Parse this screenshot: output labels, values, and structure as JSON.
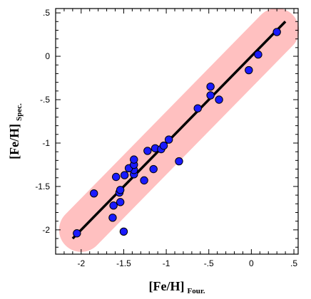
{
  "chart_data": {
    "type": "scatter",
    "xlabel": "[Fe/H]",
    "xlabel_sub": "Four.",
    "ylabel": "[Fe/H]",
    "ylabel_sub": "Spec.",
    "xlim": [
      -2.3,
      0.55
    ],
    "ylim": [
      -2.28,
      0.55
    ],
    "x_ticks": [
      -2,
      -1.5,
      -1,
      -0.5,
      0,
      0.5
    ],
    "x_tick_labels": [
      "-2",
      "-1.5",
      "-1",
      "-.5",
      "0",
      ".5"
    ],
    "y_ticks": [
      -2,
      -1.5,
      -1,
      -0.5,
      0,
      0.5
    ],
    "y_tick_labels": [
      "-2",
      "-1.5",
      "-1",
      "-.5",
      "0",
      ".5"
    ],
    "grid": false,
    "fit_line": {
      "x": [
        -2.1,
        0.4
      ],
      "y": [
        -2.1,
        0.4
      ],
      "color": "#000000"
    },
    "band": {
      "x": [
        -2.0,
        0.3
      ],
      "y": [
        -2.0,
        0.3
      ],
      "color": "#ffc0c0"
    },
    "point_color": "#1a1aff",
    "points": [
      {
        "x": -2.05,
        "y": -2.04
      },
      {
        "x": -1.5,
        "y": -2.02
      },
      {
        "x": -1.63,
        "y": -1.86
      },
      {
        "x": -1.62,
        "y": -1.72
      },
      {
        "x": -1.54,
        "y": -1.68
      },
      {
        "x": -1.85,
        "y": -1.58
      },
      {
        "x": -1.55,
        "y": -1.57
      },
      {
        "x": -1.54,
        "y": -1.54
      },
      {
        "x": -1.59,
        "y": -1.39
      },
      {
        "x": -1.49,
        "y": -1.37
      },
      {
        "x": -1.26,
        "y": -1.43
      },
      {
        "x": -1.38,
        "y": -1.36
      },
      {
        "x": -1.38,
        "y": -1.31
      },
      {
        "x": -1.44,
        "y": -1.29
      },
      {
        "x": -1.38,
        "y": -1.25
      },
      {
        "x": -1.15,
        "y": -1.3
      },
      {
        "x": -1.38,
        "y": -1.19
      },
      {
        "x": -0.85,
        "y": -1.21
      },
      {
        "x": -1.22,
        "y": -1.09
      },
      {
        "x": -1.13,
        "y": -1.06
      },
      {
        "x": -1.06,
        "y": -1.07
      },
      {
        "x": -1.03,
        "y": -1.03
      },
      {
        "x": -0.97,
        "y": -0.96
      },
      {
        "x": -0.63,
        "y": -0.6
      },
      {
        "x": -0.38,
        "y": -0.5
      },
      {
        "x": -0.48,
        "y": -0.45
      },
      {
        "x": -0.48,
        "y": -0.35
      },
      {
        "x": -0.03,
        "y": -0.16
      },
      {
        "x": 0.08,
        "y": 0.02
      },
      {
        "x": 0.3,
        "y": 0.28
      }
    ]
  }
}
